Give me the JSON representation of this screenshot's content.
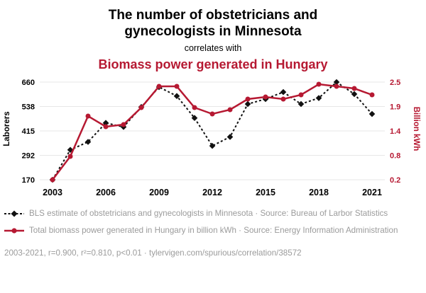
{
  "header": {
    "title": "The number of obstetricians and gynecologists in Minnesota",
    "subtitle": "correlates with",
    "title2": "Biomass power generated in Hungary"
  },
  "chart_data": {
    "type": "line",
    "title": "The number of obstetricians and gynecologists in Minnesota correlates with Biomass power generated in Hungary",
    "x": [
      2003,
      2004,
      2005,
      2006,
      2007,
      2008,
      2009,
      2010,
      2011,
      2012,
      2013,
      2014,
      2015,
      2016,
      2017,
      2018,
      2019,
      2020,
      2021
    ],
    "x_ticks": [
      2003,
      2006,
      2009,
      2012,
      2015,
      2018,
      2021
    ],
    "x_range": [
      2003,
      2021
    ],
    "grid": "horizontal",
    "legend_position": "bottom",
    "left_axis": {
      "label": "Laborers",
      "ticks": [
        "170",
        "292",
        "415",
        "538",
        "660"
      ],
      "range": [
        170,
        660
      ],
      "color": "#000000"
    },
    "right_axis": {
      "label": "Billion kWh",
      "ticks": [
        "0.2",
        "0.8",
        "1.4",
        "1.9",
        "2.5"
      ],
      "range": [
        0.2,
        2.5
      ],
      "color": "#b61932"
    },
    "series": [
      {
        "name": "BLS estimate of obstetricians and gynecologists in Minnesota",
        "axis": "left",
        "style": "dashed-diamond",
        "color": "#111111",
        "values": [
          170,
          320,
          360,
          455,
          435,
          535,
          635,
          590,
          480,
          340,
          385,
          550,
          575,
          610,
          550,
          580,
          660,
          600,
          500
        ]
      },
      {
        "name": "Total biomass power generated in Hungary in billion kWh",
        "axis": "right",
        "style": "solid-circle",
        "color": "#b61932",
        "values": [
          0.2,
          0.75,
          1.7,
          1.45,
          1.5,
          1.9,
          2.4,
          2.4,
          1.9,
          1.75,
          1.85,
          2.1,
          2.15,
          2.1,
          2.2,
          2.45,
          2.4,
          2.35,
          2.2
        ]
      }
    ]
  },
  "legend": [
    {
      "marker": "black-diamond-dashed",
      "text": "BLS estimate of obstetricians and gynecologists in Minnesota · Source: Bureau of Larbor Statistics"
    },
    {
      "marker": "red-circle-line",
      "text": "Total biomass power generated in Hungary in billion kWh · Source: Energy Information Administration"
    }
  ],
  "footer": {
    "text": "2003-2021, r=0.900, r²=0.810, p<0.01 · tylervigen.com/spurious/correlation/38572"
  },
  "colors": {
    "accent": "#b61932",
    "ink": "#111111",
    "muted": "#9b9b9b",
    "grid": "#e7e7e7"
  }
}
